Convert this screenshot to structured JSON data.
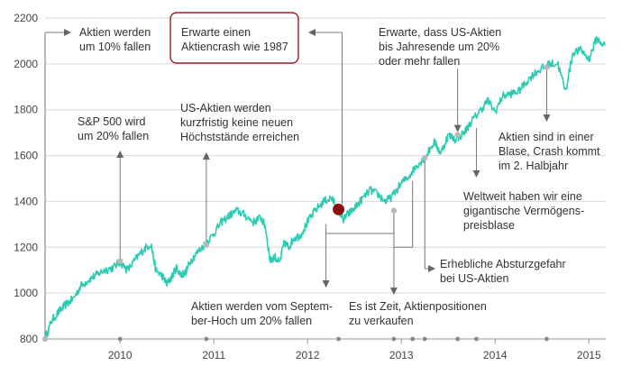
{
  "chart_data": {
    "type": "line",
    "title": "",
    "xlabel": "",
    "ylabel": "",
    "xlim": [
      2009.2,
      2015.18
    ],
    "ylim": [
      800,
      2200
    ],
    "yticks": [
      800,
      1000,
      1200,
      1400,
      1600,
      1800,
      2000,
      2200
    ],
    "xticks": [
      {
        "x": 2010,
        "label": "2010"
      },
      {
        "x": 2011,
        "label": "2011"
      },
      {
        "x": 2012,
        "label": "2012"
      },
      {
        "x": 2013,
        "label": "2013"
      },
      {
        "x": 2014,
        "label": "2014"
      },
      {
        "x": 2015,
        "label": "2015"
      }
    ],
    "line_color": "#2ecbb3",
    "series": [
      {
        "values": [
          [
            2009.2,
            800
          ],
          [
            2009.27,
            880
          ],
          [
            2009.35,
            920
          ],
          [
            2009.42,
            950
          ],
          [
            2009.5,
            975
          ],
          [
            2009.58,
            1030
          ],
          [
            2009.67,
            1060
          ],
          [
            2009.75,
            1080
          ],
          [
            2009.83,
            1100
          ],
          [
            2009.92,
            1110
          ],
          [
            2010.0,
            1135
          ],
          [
            2010.08,
            1100
          ],
          [
            2010.17,
            1150
          ],
          [
            2010.25,
            1190
          ],
          [
            2010.33,
            1215
          ],
          [
            2010.38,
            1100
          ],
          [
            2010.45,
            1075
          ],
          [
            2010.5,
            1040
          ],
          [
            2010.55,
            1070
          ],
          [
            2010.6,
            1110
          ],
          [
            2010.65,
            1080
          ],
          [
            2010.7,
            1090
          ],
          [
            2010.75,
            1140
          ],
          [
            2010.83,
            1180
          ],
          [
            2010.92,
            1220
          ],
          [
            2011.0,
            1260
          ],
          [
            2011.08,
            1310
          ],
          [
            2011.17,
            1340
          ],
          [
            2011.25,
            1360
          ],
          [
            2011.33,
            1340
          ],
          [
            2011.42,
            1310
          ],
          [
            2011.5,
            1330
          ],
          [
            2011.55,
            1290
          ],
          [
            2011.6,
            1140
          ],
          [
            2011.65,
            1160
          ],
          [
            2011.7,
            1130
          ],
          [
            2011.75,
            1220
          ],
          [
            2011.8,
            1200
          ],
          [
            2011.85,
            1240
          ],
          [
            2011.92,
            1250
          ],
          [
            2012.0,
            1310
          ],
          [
            2012.08,
            1360
          ],
          [
            2012.17,
            1400
          ],
          [
            2012.25,
            1415
          ],
          [
            2012.3,
            1390
          ],
          [
            2012.38,
            1320
          ],
          [
            2012.42,
            1340
          ],
          [
            2012.5,
            1370
          ],
          [
            2012.58,
            1410
          ],
          [
            2012.67,
            1450
          ],
          [
            2012.75,
            1430
          ],
          [
            2012.83,
            1400
          ],
          [
            2012.9,
            1420
          ],
          [
            2013.0,
            1480
          ],
          [
            2013.08,
            1510
          ],
          [
            2013.17,
            1560
          ],
          [
            2013.25,
            1590
          ],
          [
            2013.35,
            1660
          ],
          [
            2013.42,
            1610
          ],
          [
            2013.5,
            1690
          ],
          [
            2013.58,
            1670
          ],
          [
            2013.67,
            1700
          ],
          [
            2013.75,
            1750
          ],
          [
            2013.83,
            1790
          ],
          [
            2013.92,
            1840
          ],
          [
            2014.0,
            1790
          ],
          [
            2014.08,
            1860
          ],
          [
            2014.17,
            1870
          ],
          [
            2014.25,
            1880
          ],
          [
            2014.33,
            1920
          ],
          [
            2014.42,
            1960
          ],
          [
            2014.5,
            1980
          ],
          [
            2014.58,
            2000
          ],
          [
            2014.67,
            2000
          ],
          [
            2014.75,
            1880
          ],
          [
            2014.83,
            2050
          ],
          [
            2014.92,
            2060
          ],
          [
            2015.0,
            2020
          ],
          [
            2015.08,
            2110
          ],
          [
            2015.17,
            2080
          ]
        ]
      }
    ],
    "annotations": [
      {
        "text": [
          "Aktien werden",
          "um 10% fallen"
        ],
        "x": 2009.2,
        "y": 800,
        "boxed": false
      },
      {
        "text": [
          "S&P 500 wird",
          "um 20% fallen"
        ],
        "x": 2010.0,
        "y": 1140,
        "boxed": false
      },
      {
        "text": [
          "US-Aktien werden",
          "kurzfristig keine neuen",
          "Höchststände erreichen"
        ],
        "x": 2010.92,
        "y": 1210,
        "boxed": false
      },
      {
        "text": [
          "Erwarte einen",
          "Aktiencrash wie 1987"
        ],
        "x": 2012.33,
        "y": 1365,
        "boxed": true
      },
      {
        "text": [
          "Aktien werden vom Septem-",
          "ber-Hoch um 20% fallen"
        ],
        "x": 2012.33,
        "y": 1365,
        "boxed": false
      },
      {
        "text": [
          "Es ist Zeit, Aktienpositionen",
          "zu verkaufen"
        ],
        "x": 2012.92,
        "y": 1360,
        "boxed": false
      },
      {
        "text": [
          "Erwarte, dass US-Aktien",
          "bis Jahresende um 20%",
          "oder mehr fallen"
        ],
        "x": 2013.6,
        "y": 1690,
        "boxed": false
      },
      {
        "text": [
          "Erhebliche Absturzgefahr",
          "bei US-Aktien"
        ],
        "x": 2013.25,
        "y": 1590,
        "boxed": false
      },
      {
        "text": [
          "Weltweit haben wir eine",
          "gigantische Vermögens-",
          "preisblase"
        ],
        "x": 2013.8,
        "y": 1770,
        "boxed": false
      },
      {
        "text": [
          "Aktien sind in einer",
          "Blase, Crash kommt",
          "im 2. Halbjahr"
        ],
        "x": 2014.55,
        "y": 1985,
        "boxed": false
      }
    ]
  }
}
